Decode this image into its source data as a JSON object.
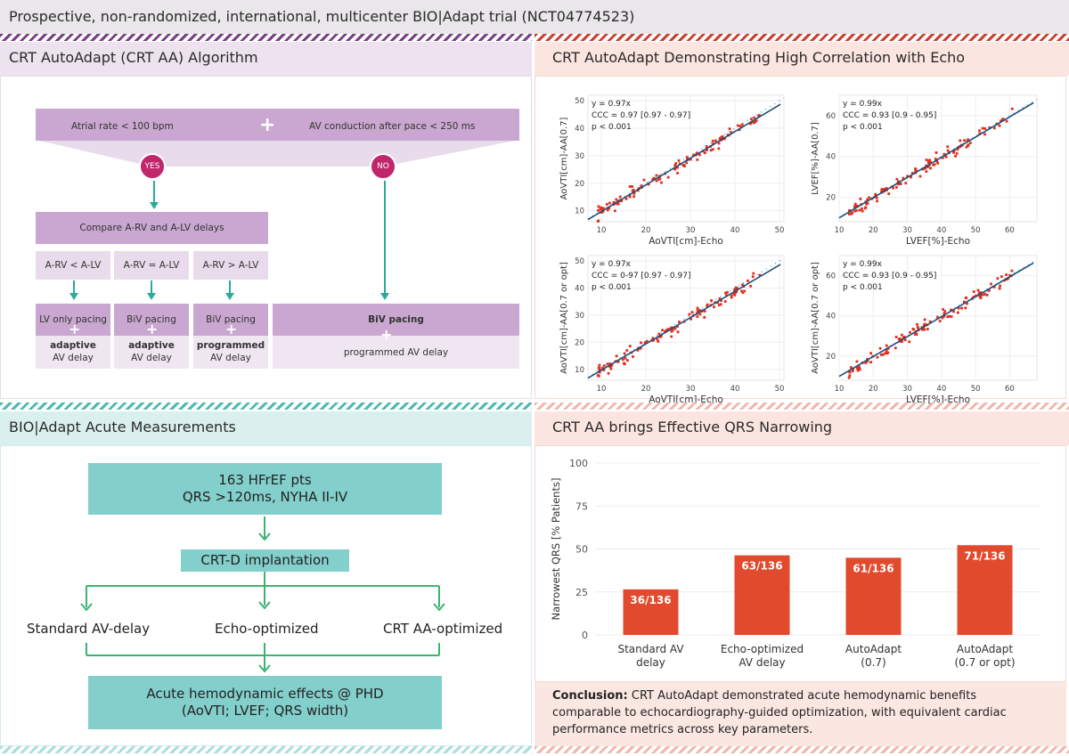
{
  "header": {
    "title": "Prospective, non-randomized, international, multicenter BIO|Adapt trial (NCT04774523)"
  },
  "colors": {
    "purple": "#c9a7d0",
    "magenta": "#c0266c",
    "teal": "#83cfcc",
    "red": "#e24a2e",
    "arrow_teal": "#2aaa9a",
    "arrow_green": "#3cb371"
  },
  "algorithm": {
    "title": "CRT AutoAdapt (CRT AA) Algorithm",
    "cond1": "Atrial rate < 100 bpm",
    "cond2": "AV conduction after pace < 250 ms",
    "plus": "+",
    "yes": "YES",
    "no": "NO",
    "compare": "Compare A-RV and A-LV delays",
    "branches": [
      "A-RV < A-LV",
      "A-RV = A-LV",
      "A-RV > A-LV"
    ],
    "outcomes": [
      {
        "mode": "LV only pacing",
        "delay_type": "adaptive",
        "delay": "AV delay"
      },
      {
        "mode": "BiV pacing",
        "delay_type": "adaptive",
        "delay": "AV delay"
      },
      {
        "mode": "BiV pacing",
        "delay_type": "programmed",
        "delay": "AV delay"
      }
    ],
    "no_outcome": {
      "mode": "BiV pacing",
      "delay": "programmed AV delay"
    }
  },
  "measurements": {
    "title": "BIO|Adapt Acute Measurements",
    "box1_line1": "163 HFrEF pts",
    "box1_line2": "QRS >120ms, NYHA II-IV",
    "box2": "CRT-D implantation",
    "options": [
      "Standard AV-delay",
      "Echo-optimized",
      "CRT AA-optimized"
    ],
    "box3_line1": "Acute hemodynamic effects @ PHD",
    "box3_line2": "(AoVTI; LVEF; QRS width)"
  },
  "correlation": {
    "title": "CRT AutoAdapt Demonstrating High Correlation with Echo",
    "plots": [
      {
        "ylabel": "AoVTI[cm]-AA[0.7]",
        "xlabel": "AoVTI[cm]-Echo",
        "eq": "y = 0.97x",
        "ccc": "CCC = 0.97 [0.97 - 0.97]",
        "p": "p < 0.001",
        "xmin": 7,
        "xmax": 51,
        "ymin": 6,
        "ymax": 52,
        "xticks": [
          10,
          20,
          30,
          40,
          50
        ],
        "yticks": [
          10,
          20,
          30,
          40,
          50
        ],
        "slope": 0.97,
        "seed": 11
      },
      {
        "ylabel": "LVEF[%]-AA[0.7]",
        "xlabel": "LVEF[%]-Echo",
        "eq": "y = 0.99x",
        "ccc": "CCC = 0.93 [0.9 - 0.95]",
        "p": "p < 0.001",
        "xmin": 10,
        "xmax": 68,
        "ymin": 8,
        "ymax": 70,
        "xticks": [
          10,
          20,
          30,
          40,
          50,
          60
        ],
        "yticks": [
          20,
          40,
          60
        ],
        "slope": 0.99,
        "seed": 23
      },
      {
        "ylabel": "AoVTI[cm]-AA[0.7 or opt]",
        "xlabel": "AoVTI[cm]-Echo",
        "eq": "y = 0.97x",
        "ccc": "CCC = 0-97 [0.97 - 0.97]",
        "p": "p < 0.001",
        "xmin": 7,
        "xmax": 51,
        "ymin": 6,
        "ymax": 52,
        "xticks": [
          10,
          20,
          30,
          40,
          50
        ],
        "yticks": [
          10,
          20,
          30,
          40,
          50
        ],
        "slope": 0.97,
        "seed": 37
      },
      {
        "ylabel": "AoVTI[cm]-AA[0.7 or opt]",
        "xlabel": "LVEF[%]-Echo",
        "eq": "y = 0.99x",
        "ccc": "CCC = 0.93 [0.9 - 0.95]",
        "p": "p < 0.001",
        "xmin": 10,
        "xmax": 68,
        "ymin": 8,
        "ymax": 70,
        "xticks": [
          10,
          20,
          30,
          40,
          50,
          60
        ],
        "yticks": [
          20,
          40,
          60
        ],
        "slope": 0.99,
        "seed": 53
      }
    ]
  },
  "chart_data": {
    "type": "bar",
    "title": "CRT AA brings Effective QRS Narrowing",
    "ylabel": "Narrowest QRS [% Patients]",
    "ylim": [
      0,
      100
    ],
    "yticks": [
      0,
      25,
      50,
      75,
      100
    ],
    "categories": [
      [
        "Standard AV",
        "delay"
      ],
      [
        "Echo-optimized",
        "AV delay"
      ],
      [
        "AutoAdapt",
        "(0.7)"
      ],
      [
        "AutoAdapt",
        "(0.7 or opt)"
      ]
    ],
    "values": [
      26.5,
      46.3,
      44.9,
      52.2
    ],
    "labels": [
      "36/136",
      "63/136",
      "61/136",
      "71/136"
    ]
  },
  "conclusion": {
    "label": "Conclusion:",
    "text": " CRT AutoAdapt demonstrated acute hemodynamic benefits comparable to echocardiography-guided optimization, with equivalent cardiac performance metrics across key parameters."
  }
}
